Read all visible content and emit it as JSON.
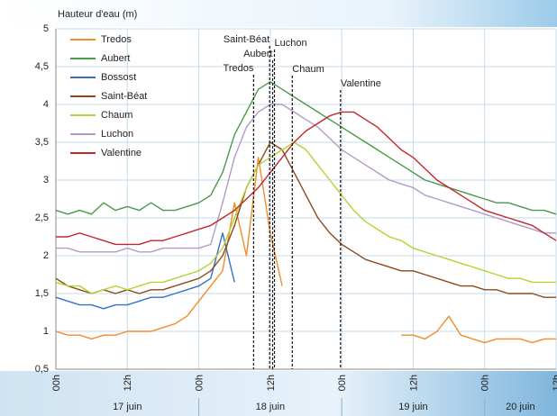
{
  "chart_data": {
    "type": "line",
    "y_label": "Hauteur d'eau (m)",
    "xlim": [
      0,
      84
    ],
    "xticks": [
      {
        "value": 0,
        "label": "00h"
      },
      {
        "value": 12,
        "label": "12h"
      },
      {
        "value": 24,
        "label": "00h"
      },
      {
        "value": 36,
        "label": "12h"
      },
      {
        "value": 48,
        "label": "00h"
      },
      {
        "value": 60,
        "label": "12h"
      },
      {
        "value": 72,
        "label": "00h"
      },
      {
        "value": 84,
        "label": "12h"
      }
    ],
    "date_labels": [
      "17 juin",
      "18 juin",
      "19 juin",
      "20 juin"
    ],
    "ylim": [
      0.5,
      5
    ],
    "yticks": [
      {
        "value": 0.5,
        "label": "0,5"
      },
      1,
      {
        "value": 1.5,
        "label": "1,5"
      },
      2,
      {
        "value": 2.5,
        "label": "2,5"
      },
      3,
      {
        "value": 3.5,
        "label": "3,5"
      },
      4,
      {
        "value": 4.5,
        "label": "4,5"
      },
      5
    ],
    "grid": true,
    "legend": "upper-left",
    "x": [
      0,
      2,
      4,
      6,
      8,
      10,
      12,
      14,
      16,
      18,
      20,
      22,
      24,
      26,
      28,
      30,
      32,
      34,
      36,
      38,
      40,
      42,
      44,
      46,
      48,
      50,
      52,
      54,
      56,
      58,
      60,
      62,
      64,
      66,
      68,
      70,
      72,
      74,
      76,
      78,
      80,
      82,
      84
    ],
    "series": [
      {
        "name": "Tredos",
        "color": "#f28c28",
        "values": [
          1.0,
          0.95,
          0.95,
          0.9,
          0.95,
          0.95,
          1.0,
          1.0,
          1.0,
          1.05,
          1.1,
          1.2,
          1.4,
          1.6,
          1.8,
          2.7,
          2.0,
          3.3,
          2.3,
          1.6,
          null,
          null,
          null,
          null,
          null,
          null,
          null,
          null,
          null,
          0.95,
          0.95,
          0.9,
          1.0,
          1.2,
          0.95,
          0.9,
          0.85,
          0.9,
          0.9,
          0.9,
          0.85,
          0.9,
          0.9
        ]
      },
      {
        "name": "Aubert",
        "color": "#4a9a4a",
        "values": [
          2.6,
          2.55,
          2.6,
          2.55,
          2.7,
          2.6,
          2.65,
          2.6,
          2.7,
          2.6,
          2.6,
          2.65,
          2.7,
          2.8,
          3.1,
          3.6,
          3.9,
          4.2,
          4.3,
          4.2,
          4.1,
          4.0,
          3.9,
          3.8,
          3.7,
          3.6,
          3.5,
          3.4,
          3.3,
          3.2,
          3.1,
          3.0,
          2.95,
          2.9,
          2.85,
          2.8,
          2.75,
          2.7,
          2.7,
          2.65,
          2.6,
          2.6,
          2.55
        ]
      },
      {
        "name": "Bossost",
        "color": "#3b6fc4",
        "values": [
          1.45,
          1.4,
          1.35,
          1.35,
          1.3,
          1.35,
          1.35,
          1.4,
          1.45,
          1.45,
          1.5,
          1.55,
          1.6,
          1.7,
          2.3,
          1.65,
          null,
          null,
          null,
          null,
          null,
          null,
          null,
          null,
          null,
          null,
          null,
          null,
          null,
          null,
          null,
          null,
          null,
          null,
          null,
          null,
          null,
          null,
          null,
          null,
          null,
          null,
          null
        ]
      },
      {
        "name": "Saint-Béat",
        "color": "#8b4a1c",
        "values": [
          1.7,
          1.6,
          1.55,
          1.5,
          1.55,
          1.5,
          1.55,
          1.5,
          1.55,
          1.55,
          1.6,
          1.65,
          1.7,
          1.8,
          2.0,
          2.4,
          2.9,
          3.2,
          3.5,
          3.4,
          3.1,
          2.8,
          2.5,
          2.3,
          2.15,
          2.05,
          1.95,
          1.9,
          1.85,
          1.8,
          1.8,
          1.75,
          1.7,
          1.65,
          1.6,
          1.6,
          1.55,
          1.55,
          1.5,
          1.5,
          1.5,
          1.45,
          1.45
        ]
      },
      {
        "name": "Chaum",
        "color": "#b5d334",
        "values": [
          1.65,
          1.6,
          1.6,
          1.5,
          1.55,
          1.6,
          1.55,
          1.6,
          1.65,
          1.65,
          1.7,
          1.75,
          1.8,
          1.9,
          2.1,
          2.5,
          2.9,
          3.2,
          3.3,
          3.4,
          3.5,
          3.4,
          3.2,
          3.0,
          2.8,
          2.6,
          2.45,
          2.35,
          2.25,
          2.2,
          2.1,
          2.05,
          2.0,
          1.95,
          1.9,
          1.85,
          1.8,
          1.75,
          1.7,
          1.7,
          1.65,
          1.65,
          1.65
        ]
      },
      {
        "name": "Luchon",
        "color": "#b49ac8",
        "values": [
          2.1,
          2.1,
          2.05,
          2.05,
          2.05,
          2.05,
          2.1,
          2.05,
          2.05,
          2.1,
          2.1,
          2.1,
          2.1,
          2.15,
          2.7,
          3.3,
          3.7,
          3.9,
          4.0,
          4.0,
          3.9,
          3.8,
          3.7,
          3.55,
          3.4,
          3.3,
          3.2,
          3.1,
          3.0,
          2.95,
          2.9,
          2.8,
          2.75,
          2.7,
          2.65,
          2.6,
          2.55,
          2.5,
          2.45,
          2.4,
          2.35,
          2.3,
          2.3
        ]
      },
      {
        "name": "Valentine",
        "color": "#c0282d",
        "values": [
          2.25,
          2.25,
          2.3,
          2.25,
          2.2,
          2.15,
          2.15,
          2.15,
          2.2,
          2.2,
          2.25,
          2.3,
          2.35,
          2.4,
          2.5,
          2.6,
          2.75,
          2.9,
          3.1,
          3.3,
          3.5,
          3.65,
          3.75,
          3.85,
          3.9,
          3.9,
          3.8,
          3.7,
          3.55,
          3.4,
          3.3,
          3.15,
          3.0,
          2.9,
          2.8,
          2.7,
          2.6,
          2.55,
          2.5,
          2.45,
          2.4,
          2.3,
          2.2
        ]
      }
    ],
    "peak_markers": [
      {
        "label": "Tredos",
        "x": 33.2
      },
      {
        "label": "Saint-Béat",
        "x": 35.9
      },
      {
        "label": "Aubert",
        "x": 36.4
      },
      {
        "label": "Luchon",
        "x": 36.7
      },
      {
        "label": "Chaum",
        "x": 39.7
      },
      {
        "label": "Valentine",
        "x": 47.8
      }
    ]
  }
}
